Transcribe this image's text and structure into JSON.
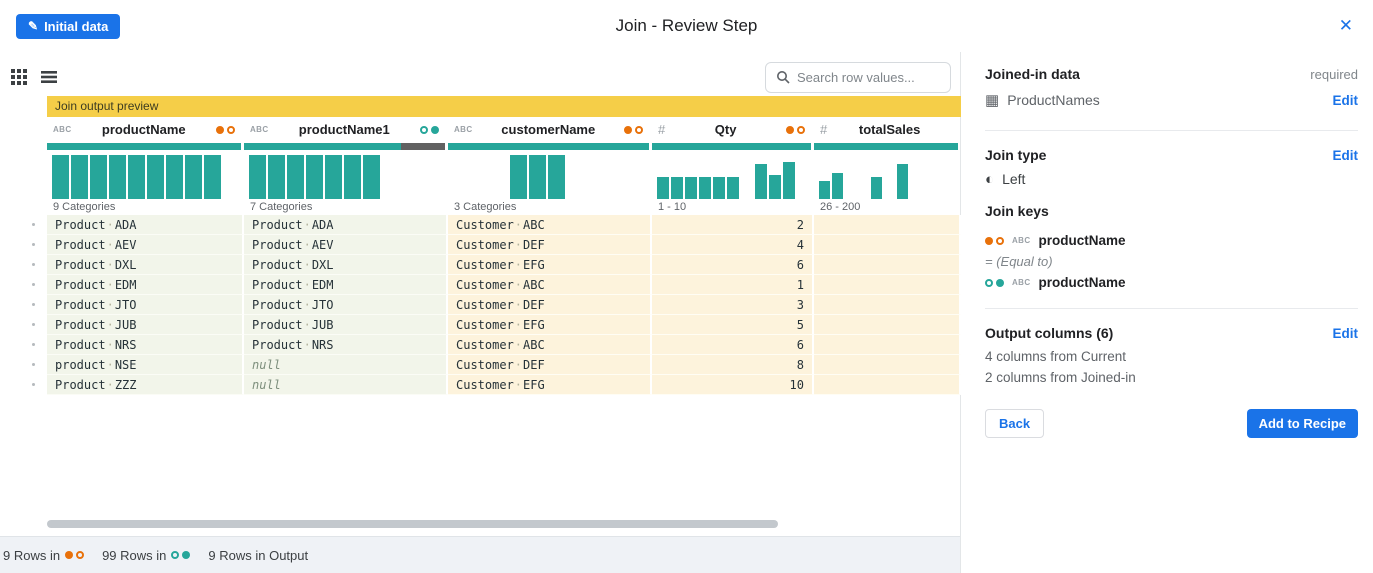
{
  "colors": {
    "accent_blue": "#1a73e8",
    "teal": "#26a69a",
    "orange": "#e8710a",
    "banner_gold": "#f5ce48",
    "missing_gray": "#616161"
  },
  "header": {
    "initial_data_button": "Initial data",
    "title": "Join - Review Step",
    "close_icon": "✕"
  },
  "toolbar": {
    "search_placeholder": "Search row values..."
  },
  "preview": {
    "banner_label": "Join output preview",
    "columns": [
      {
        "type_icon": "ABC",
        "name": "productName",
        "dots": [
          "orange-filled",
          "orange-outline"
        ],
        "quality_valid": 1,
        "histogram": [
          1,
          1,
          1,
          1,
          1,
          1,
          1,
          1,
          1
        ],
        "categories_label": "9 Categories"
      },
      {
        "type_icon": "ABC",
        "name": "productName1",
        "dots": [
          "teal-outline",
          "teal-filled"
        ],
        "quality_valid": 0.78,
        "histogram": [
          1,
          1,
          1,
          1,
          1,
          1,
          1
        ],
        "categories_label": "7 Categories"
      },
      {
        "type_icon": "ABC",
        "name": "customerName",
        "dots": [
          "orange-filled",
          "orange-outline"
        ],
        "quality_valid": 1,
        "histogram": [
          0,
          0,
          0,
          1,
          1,
          1,
          0,
          0,
          0
        ],
        "categories_label": "3 Categories"
      },
      {
        "type_icon": "#",
        "name": "Qty",
        "dots": [
          "orange-filled",
          "orange-outline"
        ],
        "quality_valid": 1,
        "histogram": [
          0.5,
          0.5,
          0.5,
          0.5,
          0.5,
          0.5,
          0,
          0.8,
          0.55,
          0.85
        ],
        "categories_label": "1 - 10"
      },
      {
        "type_icon": "#",
        "name": "totalSales",
        "dots": [],
        "quality_valid": 1,
        "histogram": [
          0.4,
          0.6,
          0,
          0,
          0.5,
          0,
          0.8,
          0,
          0,
          0
        ],
        "categories_label": "26 - 200"
      }
    ],
    "rows": [
      [
        "Product·ADA",
        "Product·ADA",
        "Customer·ABC",
        "2",
        ""
      ],
      [
        "Product·AEV",
        "Product·AEV",
        "Customer·DEF",
        "4",
        ""
      ],
      [
        "Product·DXL",
        "Product·DXL",
        "Customer·EFG",
        "6",
        ""
      ],
      [
        "Product·EDM",
        "Product·EDM",
        "Customer·ABC",
        "1",
        ""
      ],
      [
        "Product·JTO",
        "Product·JTO",
        "Customer·DEF",
        "3",
        ""
      ],
      [
        "Product·JUB",
        "Product·JUB",
        "Customer·EFG",
        "5",
        ""
      ],
      [
        "Product·NRS",
        "Product·NRS",
        "Customer·ABC",
        "6",
        ""
      ],
      [
        "product·NSE",
        "null",
        "Customer·DEF",
        "8",
        ""
      ],
      [
        "Product·ZZZ",
        "null",
        "Customer·EFG",
        "10",
        ""
      ]
    ]
  },
  "footer": {
    "segments": [
      {
        "text": "9 Rows in",
        "dots": [
          "orange-filled",
          "orange-outline"
        ]
      },
      {
        "text": "99 Rows in",
        "dots": [
          "teal-outline",
          "teal-filled"
        ]
      },
      {
        "text": "9 Rows in Output",
        "dots": []
      }
    ]
  },
  "panel": {
    "joined_in": {
      "title": "Joined-in data",
      "required_label": "required",
      "dataset_name": "ProductNames",
      "edit_label": "Edit"
    },
    "join_type": {
      "title": "Join type",
      "value": "Left",
      "edit_label": "Edit"
    },
    "join_keys": {
      "title": "Join keys",
      "left_key": {
        "type_icon": "ABC",
        "name": "productName",
        "dots": [
          "orange-filled",
          "orange-outline"
        ]
      },
      "operator_label": "= (Equal to)",
      "right_key": {
        "type_icon": "ABC",
        "name": "productName",
        "dots": [
          "teal-outline",
          "teal-filled"
        ]
      }
    },
    "output_columns": {
      "title": "Output columns (6)",
      "edit_label": "Edit",
      "from_current": "4 columns from Current",
      "from_joined": "2 columns from Joined-in"
    },
    "actions": {
      "back_label": "Back",
      "add_label": "Add to Recipe"
    }
  }
}
